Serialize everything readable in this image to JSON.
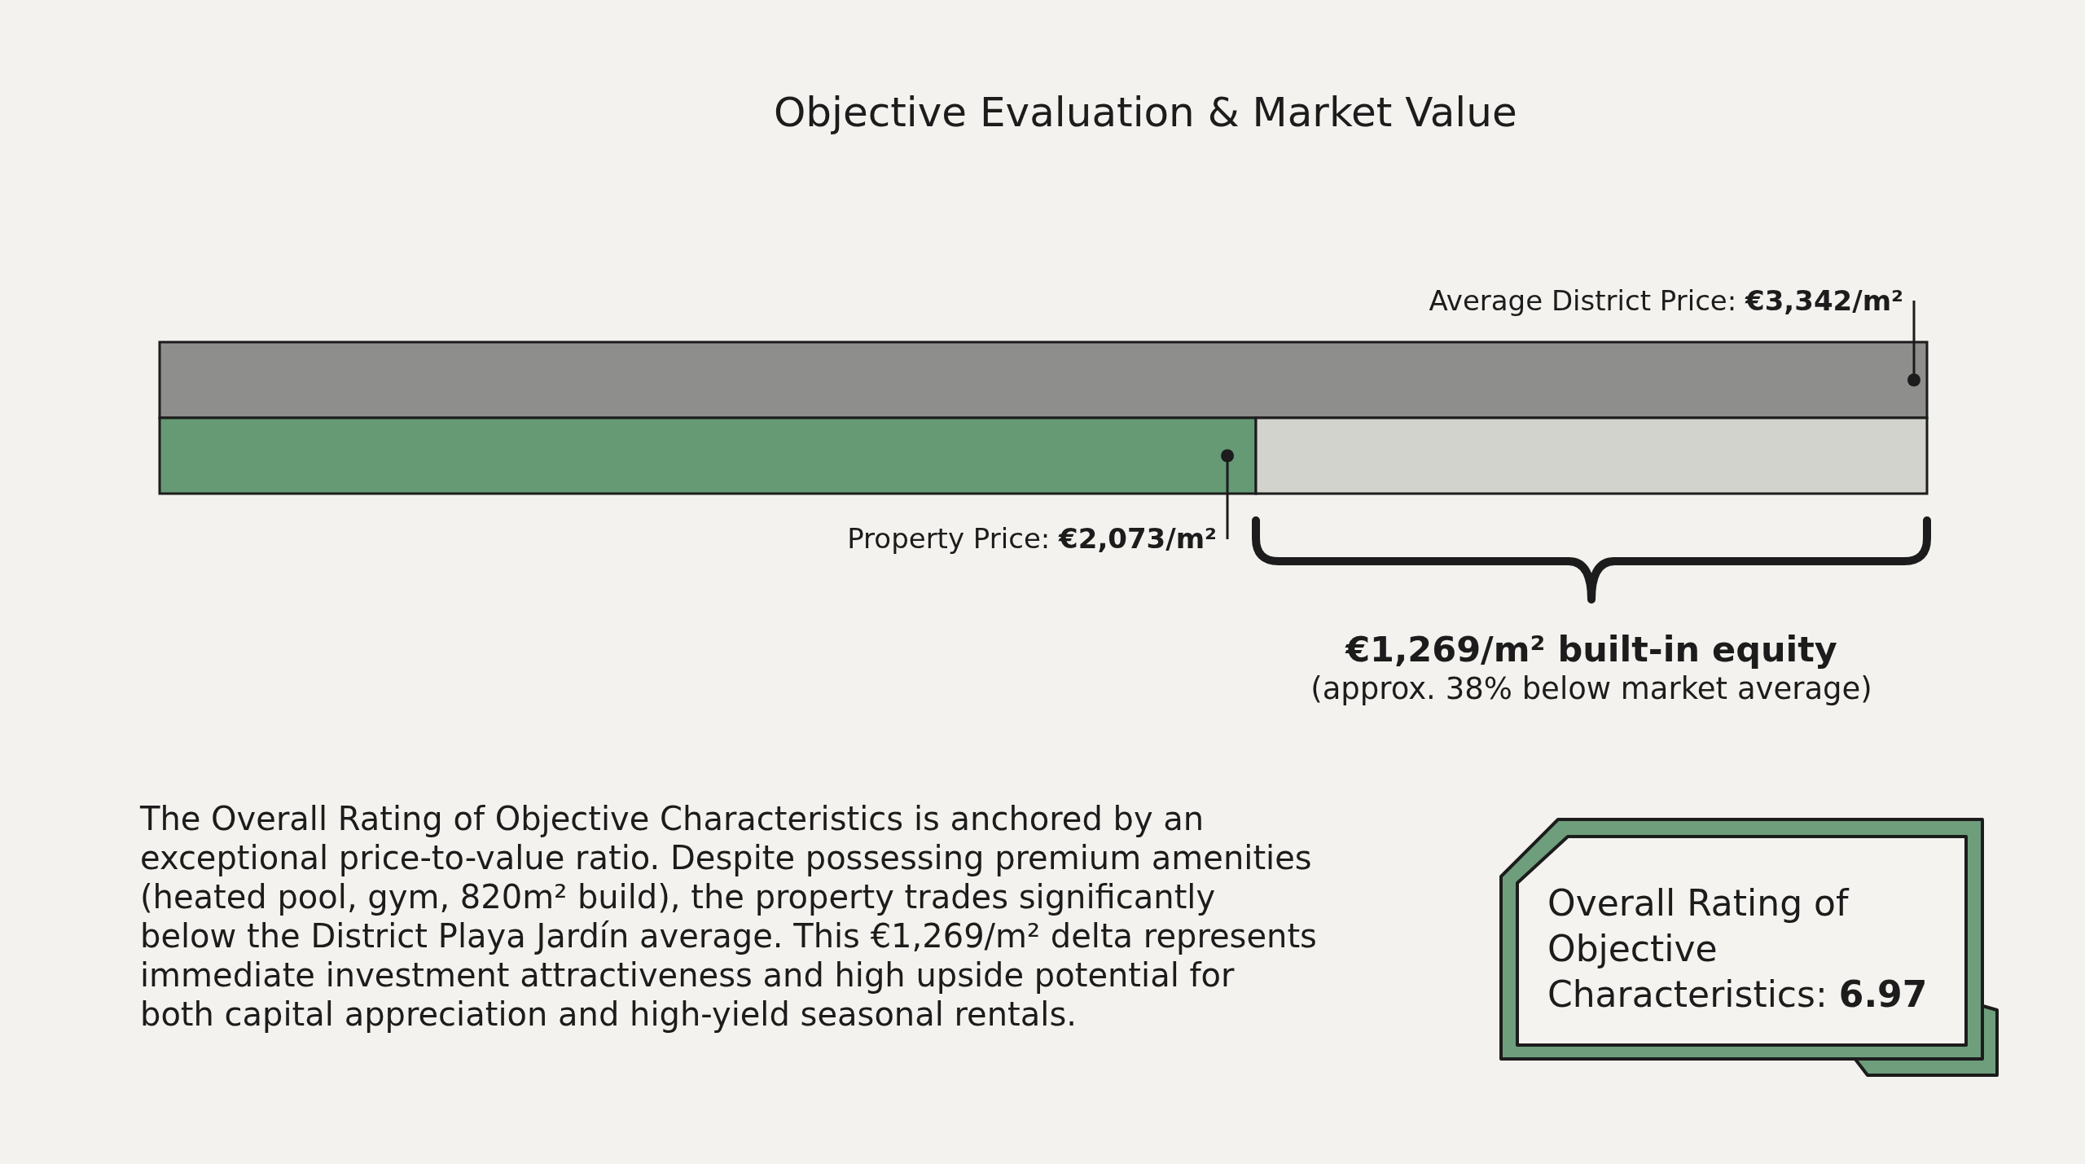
{
  "chart_data": {
    "type": "bar",
    "title": "Objective Evaluation & Market Value",
    "orientation": "horizontal",
    "stacked": true,
    "categories": [
      null,
      null
    ],
    "series": [
      {
        "name": "Average District Price:",
        "color": "#8e8e8c",
        "values": [
          3342,
          null
        ],
        "value_labels": [
          "€3,342/m²",
          null
        ]
      },
      {
        "name": "Property Price:",
        "color": "#659a75",
        "values": [
          null,
          2073
        ],
        "value_labels": [
          null,
          "€2,073/m²"
        ]
      },
      {
        "color": "#d3d3ce",
        "values": [
          null,
          1269
        ]
      }
    ],
    "tick_labels": false,
    "annotations": [
      "€1,269/m² built-in equity",
      "(approx. 38% below market average)",
      "The Overall Rating of Objective Characteristics is anchored by an exceptional price-to-value ratio. Despite possessing premium amenities (heated pool, gym, 820m² build), the property trades significantly below the District Playa Jardín average. This €1,269/m² delta represents immediate investment attractiveness and high upside potential for both capital appreciation and high-yield seasonal rentals.",
      "Overall Rating of Objective Characteristics: 6.97"
    ]
  }
}
